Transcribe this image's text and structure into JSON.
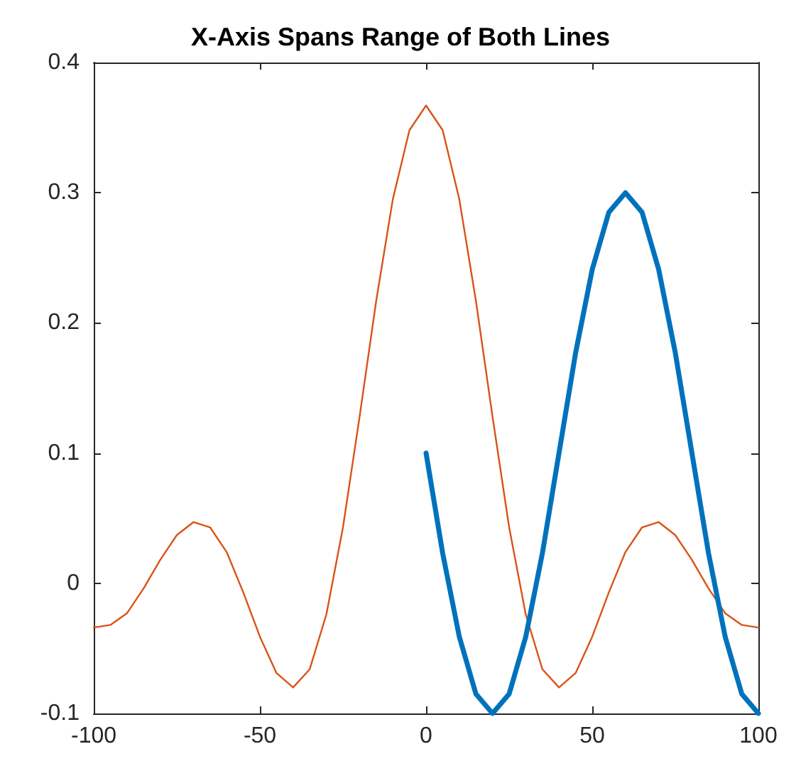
{
  "chart_data": {
    "type": "line",
    "title": "X-Axis Spans Range of Both Lines",
    "series": [
      {
        "color": "#d95319",
        "x": [
          -100,
          -95,
          -90,
          -85,
          -80,
          -75,
          -70,
          -65,
          -60,
          -55,
          -50,
          -45,
          -40,
          -35,
          -30,
          -25,
          -20,
          -15,
          -10,
          -5,
          0,
          5,
          10,
          15,
          20,
          25,
          30,
          35,
          40,
          45,
          50,
          55,
          60,
          65,
          70,
          75,
          80,
          85,
          90,
          95,
          100
        ],
        "values": [
          -0.034,
          -0.032,
          -0.023,
          -0.004,
          0.018,
          0.037,
          0.047,
          0.043,
          0.024,
          -0.007,
          -0.041,
          -0.069,
          -0.08,
          -0.066,
          -0.024,
          0.043,
          0.128,
          0.217,
          0.295,
          0.348,
          0.367,
          0.348,
          0.295,
          0.217,
          0.128,
          0.043,
          -0.024,
          -0.066,
          -0.08,
          -0.069,
          -0.041,
          -0.007,
          0.024,
          0.043,
          0.047,
          0.037,
          0.018,
          -0.004,
          -0.023,
          -0.032,
          -0.034
        ]
      },
      {
        "color": "#0072bd",
        "x": [
          0,
          5,
          10,
          15,
          20,
          25,
          30,
          35,
          40,
          45,
          50,
          55,
          60,
          65,
          70,
          75,
          80,
          85,
          90,
          95,
          100
        ],
        "values": [
          0.1,
          0.023,
          -0.041,
          -0.085,
          -0.1,
          -0.085,
          -0.041,
          0.023,
          0.1,
          0.177,
          0.241,
          0.285,
          0.3,
          0.285,
          0.241,
          0.177,
          0.1,
          0.023,
          -0.041,
          -0.085,
          -0.1
        ]
      }
    ],
    "xlim": [
      -100,
      100
    ],
    "xticks": [
      -100,
      -50,
      0,
      50,
      100
    ],
    "ylim": [
      -0.1,
      0.4
    ],
    "yticks": [
      -0.1,
      0,
      0.1,
      0.2,
      0.3,
      0.4
    ],
    "grid": false,
    "marker": "none",
    "line_style": "solid"
  }
}
